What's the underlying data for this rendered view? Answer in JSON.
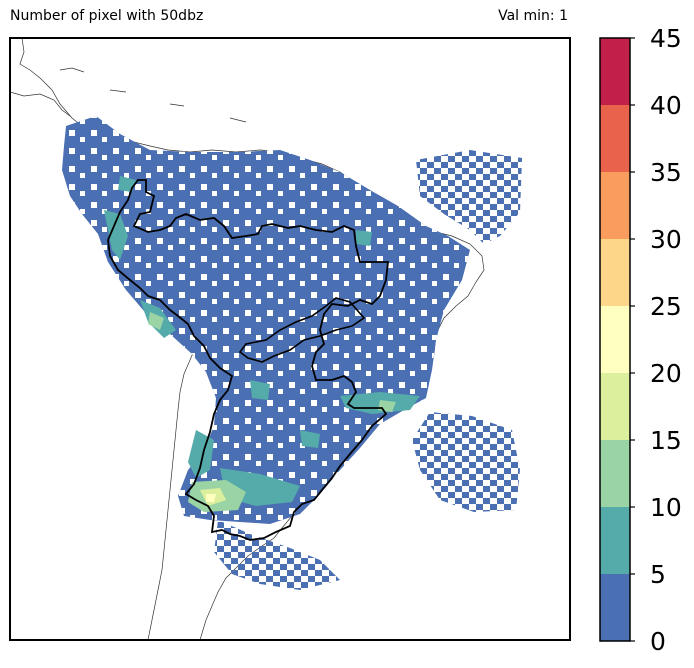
{
  "title_left": "Number of pixel with 50dbz",
  "title_right": "Val min: 1",
  "colorbar": {
    "ticks": [
      "0",
      "5",
      "10",
      "15",
      "20",
      "25",
      "30",
      "35",
      "40",
      "45"
    ],
    "colors": [
      "#4a6fb3",
      "#55aaaa",
      "#9ad4a5",
      "#dcef9c",
      "#ffffc0",
      "#fdd68a",
      "#f99c5e",
      "#e8624c",
      "#c21f4a"
    ]
  },
  "map": {
    "background": "#ffffff",
    "frame_color": "#000000",
    "coastline_color": "#333333",
    "basin_outline_color": "#000000"
  }
}
